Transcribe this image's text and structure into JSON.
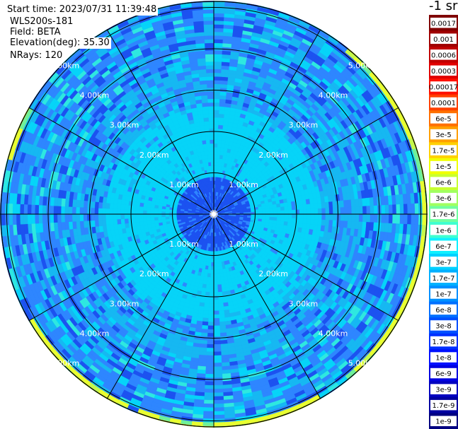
{
  "header": {
    "start_time": "Start time: 2023/07/31 11:39:48",
    "instrument": "WLS200s-181",
    "field": "Field: BETA",
    "elevation": "Elevation(deg): 35.30",
    "nrays": "NRays: 120"
  },
  "colorbar": {
    "unit_fragment": "-1 sr",
    "labels": [
      "0.0017",
      "0.001",
      "0.0006",
      "0.0003",
      "0.00017",
      "0.0001",
      "6e-5",
      "3e-5",
      "1.7e-5",
      "1e-5",
      "6e-6",
      "3e-6",
      "1.7e-6",
      "1e-6",
      "6e-7",
      "3e-7",
      "1.7e-7",
      "1e-7",
      "6e-8",
      "3e-8",
      "1.7e-8",
      "1e-8",
      "6e-9",
      "3e-9",
      "1.7e-9",
      "1e-9"
    ],
    "colors": [
      "#800000",
      "#a00000",
      "#c00000",
      "#e00000",
      "#ff1000",
      "#ff4000",
      "#ff7000",
      "#ffa000",
      "#ffd000",
      "#f0ff00",
      "#c8ff30",
      "#a0ff60",
      "#70ffa0",
      "#40ffd0",
      "#10f0ff",
      "#00d0ff",
      "#00b0ff",
      "#0090ff",
      "#0070ff",
      "#0050ff",
      "#0030ff",
      "#0010ff",
      "#0000e0",
      "#0000c0",
      "#0000a0",
      "#000080"
    ]
  },
  "chart_data": {
    "type": "heatmap",
    "projection": "polar PPI",
    "field": "BETA",
    "elevation_deg": 35.3,
    "nrays": 120,
    "range_rings_km": [
      1,
      2,
      3,
      4,
      5,
      6
    ],
    "ring_labels": [
      "1.00km",
      "2.00km",
      "3.00km",
      "4.00km",
      "5.00km"
    ],
    "spoke_spacing_deg": 30,
    "zones": [
      {
        "range_km": [
          0,
          0.9
        ],
        "level": "1e-8"
      },
      {
        "range_km": [
          0.9,
          2.6
        ],
        "level": "3e-7"
      },
      {
        "range_km": [
          2.6,
          3.6
        ],
        "level": "3e-8 to 1e-7"
      },
      {
        "range_km": [
          3.6,
          5.9
        ],
        "level": "1e-8 to 1e-7"
      },
      {
        "range_km": [
          5.9,
          7.0
        ],
        "level": "1e-8"
      }
    ],
    "bright_ring": {
      "range_km": 5.25,
      "level": "1e-6 to 6e-6"
    }
  }
}
